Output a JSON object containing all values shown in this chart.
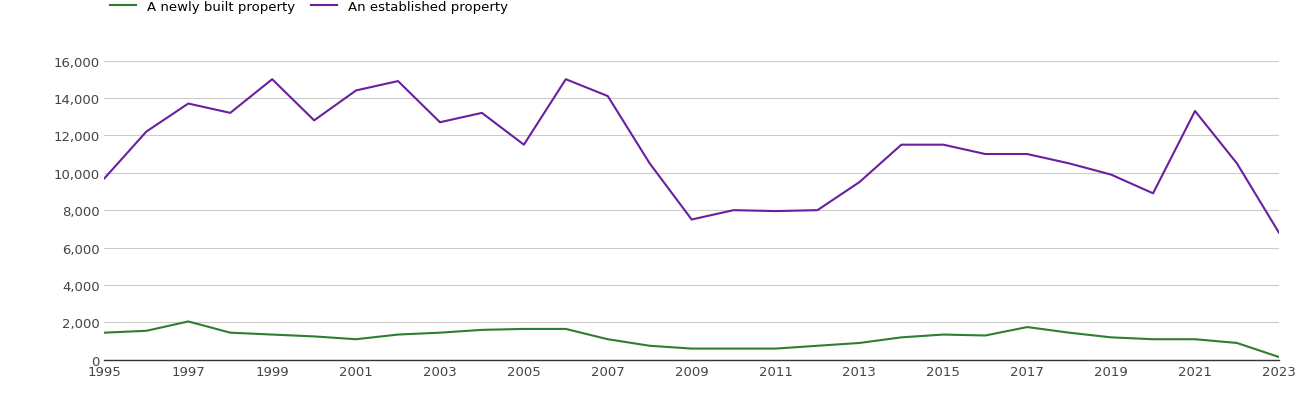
{
  "years": [
    1995,
    1996,
    1997,
    1998,
    1999,
    2000,
    2001,
    2002,
    2003,
    2004,
    2005,
    2006,
    2007,
    2008,
    2009,
    2010,
    2011,
    2012,
    2013,
    2014,
    2015,
    2016,
    2017,
    2018,
    2019,
    2020,
    2021,
    2022,
    2023
  ],
  "new_homes": [
    1450,
    1550,
    2050,
    1450,
    1350,
    1250,
    1100,
    1350,
    1450,
    1600,
    1650,
    1650,
    1100,
    750,
    600,
    600,
    600,
    750,
    900,
    1200,
    1350,
    1300,
    1750,
    1450,
    1200,
    1100,
    1100,
    900,
    150
  ],
  "established_homes": [
    9700,
    12200,
    13700,
    13200,
    15000,
    12800,
    14400,
    14900,
    12700,
    13200,
    11500,
    15000,
    14100,
    10500,
    7500,
    8000,
    7950,
    8000,
    9500,
    11500,
    11500,
    11000,
    11000,
    10500,
    9900,
    8900,
    13300,
    10500,
    6800
  ],
  "new_color": "#2e7d32",
  "established_color": "#6a1ea0",
  "new_label": "A newly built property",
  "established_label": "An established property",
  "ylim": [
    0,
    16000
  ],
  "yticks": [
    0,
    2000,
    4000,
    6000,
    8000,
    10000,
    12000,
    14000,
    16000
  ],
  "background_color": "#ffffff",
  "grid_color": "#cccccc",
  "line_width": 1.5,
  "figsize": [
    13.05,
    4.1
  ],
  "dpi": 100
}
